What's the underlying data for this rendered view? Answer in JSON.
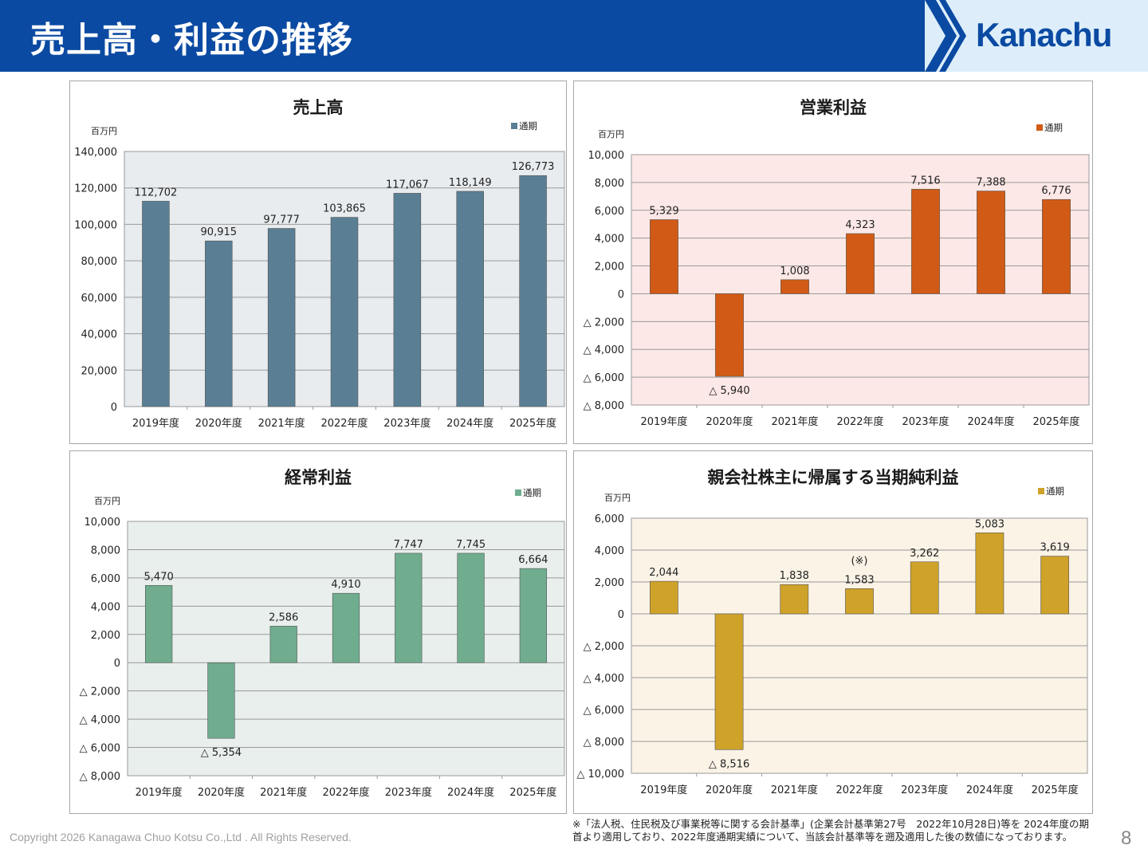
{
  "header": {
    "title": "売上高・利益の推移",
    "logo": "Kanachu"
  },
  "footer": {
    "copyright": "Copyright 2026 Kanagawa Chuo Kotsu Co.,Ltd . All Rights Reserved.",
    "note": "※「法人税、住民税及び事業税等に関する会計基準」(企業会計基準第27号　2022年10月28日)等を 2024年度の期首より適用しており、2022年度通期実績について、当該会計基準等を遡及適用した後の数値になっております。",
    "page": "8"
  },
  "chart_data": [
    {
      "type": "bar",
      "title": "売上高",
      "unit": "百万円",
      "legend": "通期",
      "legend_position": "top-right",
      "color": "#5a7f94",
      "plot_bg": "#e8ecef",
      "categories": [
        "2019年度",
        "2020年度",
        "2021年度",
        "2022年度",
        "2023年度",
        "2024年度",
        "2025年度"
      ],
      "values": [
        112702,
        90915,
        97777,
        103865,
        117067,
        118149,
        126773
      ],
      "labels": [
        "112,702",
        "90,915",
        "97,777",
        "103,865",
        "117,067",
        "118,149",
        "126,773"
      ],
      "ylim": [
        0,
        140000
      ],
      "yticks": [
        0,
        20000,
        40000,
        60000,
        80000,
        100000,
        120000,
        140000
      ],
      "ytick_labels": [
        "0",
        "20,000",
        "40,000",
        "60,000",
        "80,000",
        "100,000",
        "120,000",
        "140,000"
      ],
      "grid": true
    },
    {
      "type": "bar",
      "title": "営業利益",
      "unit": "百万円",
      "legend": "通期",
      "legend_position": "top-right",
      "color": "#d15b16",
      "plot_bg": "#fce8e6",
      "categories": [
        "2019年度",
        "2020年度",
        "2021年度",
        "2022年度",
        "2023年度",
        "2024年度",
        "2025年度"
      ],
      "values": [
        5329,
        -5940,
        1008,
        4323,
        7516,
        7388,
        6776
      ],
      "labels": [
        "5,329",
        "△ 5,940",
        "1,008",
        "4,323",
        "7,516",
        "7,388",
        "6,776"
      ],
      "ylim": [
        -8000,
        10000
      ],
      "yticks": [
        -8000,
        -6000,
        -4000,
        -2000,
        0,
        2000,
        4000,
        6000,
        8000,
        10000
      ],
      "ytick_labels": [
        "△ 8,000",
        "△ 6,000",
        "△ 4,000",
        "△ 2,000",
        "0",
        "2,000",
        "4,000",
        "6,000",
        "8,000",
        "10,000"
      ],
      "grid": true
    },
    {
      "type": "bar",
      "title": "経常利益",
      "unit": "百万円",
      "legend": "通期",
      "legend_position": "top-right",
      "color": "#6fad8e",
      "plot_bg": "#e8efec",
      "categories": [
        "2019年度",
        "2020年度",
        "2021年度",
        "2022年度",
        "2023年度",
        "2024年度",
        "2025年度"
      ],
      "values": [
        5470,
        -5354,
        2586,
        4910,
        7747,
        7745,
        6664
      ],
      "labels": [
        "5,470",
        "△ 5,354",
        "2,586",
        "4,910",
        "7,747",
        "7,745",
        "6,664"
      ],
      "ylim": [
        -8000,
        10000
      ],
      "yticks": [
        -8000,
        -6000,
        -4000,
        -2000,
        0,
        2000,
        4000,
        6000,
        8000,
        10000
      ],
      "ytick_labels": [
        "△ 8,000",
        "△ 6,000",
        "△ 4,000",
        "△ 2,000",
        "0",
        "2,000",
        "4,000",
        "6,000",
        "8,000",
        "10,000"
      ],
      "grid": true
    },
    {
      "type": "bar",
      "title": "親会社株主に帰属する当期純利益",
      "unit": "百万円",
      "legend": "通期",
      "legend_position": "top-right",
      "color": "#cfa229",
      "plot_bg": "#faf3e6",
      "categories": [
        "2019年度",
        "2020年度",
        "2021年度",
        "2022年度",
        "2023年度",
        "2024年度",
        "2025年度"
      ],
      "values": [
        2044,
        -8516,
        1838,
        1583,
        3262,
        5083,
        3619
      ],
      "labels": [
        "2,044",
        "△ 8,516",
        "1,838",
        "1,583",
        "3,262",
        "5,083",
        "3,619"
      ],
      "annotations": [
        {
          "category": "2022年度",
          "text": "(※)"
        }
      ],
      "ylim": [
        -10000,
        6000
      ],
      "yticks": [
        -10000,
        -8000,
        -6000,
        -4000,
        -2000,
        0,
        2000,
        4000,
        6000
      ],
      "ytick_labels": [
        "△ 10,000",
        "△ 8,000",
        "△ 6,000",
        "△ 4,000",
        "△ 2,000",
        "0",
        "2,000",
        "4,000",
        "6,000"
      ],
      "grid": true
    }
  ]
}
